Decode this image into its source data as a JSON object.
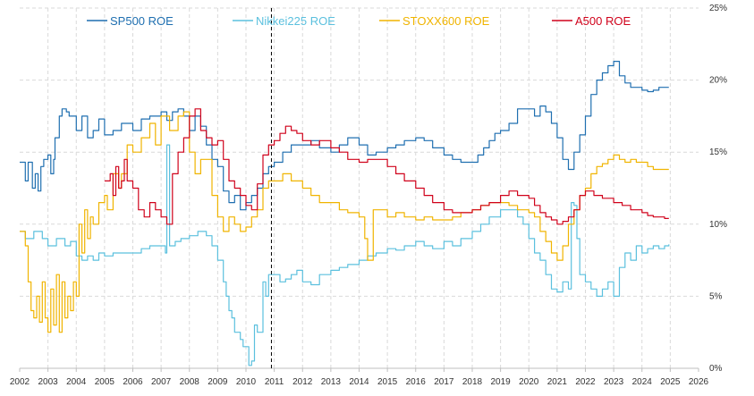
{
  "chart_data": {
    "type": "line",
    "title": "",
    "xlabel": "",
    "ylabel": "",
    "xlim": [
      2002,
      2026
    ],
    "ylim": [
      0,
      25
    ],
    "x_ticks": [
      "2002",
      "2003",
      "2004",
      "2005",
      "2006",
      "2007",
      "2008",
      "2009",
      "2010",
      "2011",
      "2012",
      "2013",
      "2014",
      "2015",
      "2016",
      "2017",
      "2018",
      "2019",
      "2020",
      "2021",
      "2022",
      "2023",
      "2024",
      "2025",
      "2026"
    ],
    "y_ticks": [
      {
        "value": 0,
        "label": "0%"
      },
      {
        "value": 5,
        "label": "5%"
      },
      {
        "value": 10,
        "label": "10%"
      },
      {
        "value": 15,
        "label": "15%"
      },
      {
        "value": 20,
        "label": "20%"
      },
      {
        "value": 25,
        "label": "25%"
      }
    ],
    "grid": true,
    "legend_position": "top",
    "annotation": {
      "type": "vertical-dashed-line",
      "x": 2010.9
    },
    "series": [
      {
        "name": "SP500 ROE",
        "color": "#1f6fb0",
        "x": [
          2002.0,
          2002.2,
          2002.3,
          2002.45,
          2002.55,
          2002.65,
          2002.75,
          2002.85,
          2003.0,
          2003.1,
          2003.2,
          2003.25,
          2003.4,
          2003.5,
          2003.65,
          2003.75,
          2004.0,
          2004.2,
          2004.4,
          2004.6,
          2004.8,
          2005.0,
          2005.3,
          2005.6,
          2006.0,
          2006.3,
          2006.6,
          2007.0,
          2007.2,
          2007.4,
          2007.6,
          2007.8,
          2008.0,
          2008.2,
          2008.4,
          2008.6,
          2008.8,
          2009.0,
          2009.2,
          2009.4,
          2009.6,
          2009.8,
          2010.0,
          2010.2,
          2010.4,
          2010.6,
          2010.8,
          2011.0,
          2011.3,
          2011.6,
          2012.0,
          2012.3,
          2012.6,
          2013.0,
          2013.3,
          2013.6,
          2014.0,
          2014.3,
          2014.6,
          2015.0,
          2015.3,
          2015.6,
          2016.0,
          2016.3,
          2016.6,
          2017.0,
          2017.3,
          2017.6,
          2018.0,
          2018.2,
          2018.4,
          2018.6,
          2018.8,
          2019.0,
          2019.3,
          2019.6,
          2020.0,
          2020.2,
          2020.4,
          2020.6,
          2020.8,
          2021.0,
          2021.2,
          2021.4,
          2021.6,
          2021.8,
          2022.0,
          2022.2,
          2022.4,
          2022.6,
          2022.8,
          2023.0,
          2023.2,
          2023.4,
          2023.6,
          2023.8,
          2024.0,
          2024.2,
          2024.4,
          2024.6,
          2024.8,
          2024.95
        ],
        "y": [
          14.3,
          13.0,
          14.3,
          12.5,
          13.5,
          12.3,
          14.0,
          14.5,
          14.8,
          13.5,
          14.5,
          16.0,
          17.5,
          18.0,
          17.8,
          17.5,
          16.5,
          17.5,
          16.0,
          16.5,
          17.3,
          16.2,
          16.5,
          17.0,
          16.5,
          17.3,
          17.5,
          17.8,
          17.2,
          17.8,
          18.0,
          17.5,
          16.5,
          17.5,
          16.8,
          15.5,
          14.5,
          14.0,
          12.3,
          11.5,
          12.0,
          11.0,
          11.5,
          12.0,
          12.5,
          13.5,
          14.0,
          14.3,
          15.0,
          15.5,
          15.5,
          15.8,
          15.3,
          15.0,
          15.5,
          16.0,
          15.5,
          14.8,
          15.0,
          15.3,
          15.5,
          15.8,
          16.0,
          15.8,
          15.3,
          14.8,
          14.5,
          14.3,
          14.3,
          14.8,
          15.3,
          15.8,
          16.3,
          16.5,
          17.0,
          18.0,
          18.0,
          17.5,
          18.2,
          17.8,
          17.0,
          16.0,
          14.5,
          13.8,
          15.0,
          16.2,
          17.5,
          19.0,
          20.0,
          20.5,
          21.0,
          21.3,
          20.3,
          19.8,
          19.5,
          19.5,
          19.3,
          19.2,
          19.3,
          19.5,
          19.5,
          19.5
        ]
      },
      {
        "name": "Nikkei225 ROE",
        "color": "#5bc0de",
        "x": [
          2002.0,
          2002.2,
          2002.5,
          2002.8,
          2003.0,
          2003.3,
          2003.6,
          2003.8,
          2004.0,
          2004.2,
          2004.4,
          2004.6,
          2004.8,
          2005.0,
          2005.3,
          2005.6,
          2006.0,
          2006.3,
          2006.6,
          2007.0,
          2007.15,
          2007.2,
          2007.3,
          2007.5,
          2007.7,
          2008.0,
          2008.3,
          2008.6,
          2008.8,
          2009.0,
          2009.2,
          2009.3,
          2009.4,
          2009.5,
          2009.6,
          2009.7,
          2009.8,
          2009.9,
          2010.0,
          2010.1,
          2010.2,
          2010.3,
          2010.4,
          2010.6,
          2010.7,
          2010.8,
          2011.0,
          2011.1,
          2011.2,
          2011.4,
          2011.6,
          2011.8,
          2012.0,
          2012.3,
          2012.6,
          2013.0,
          2013.3,
          2013.6,
          2014.0,
          2014.3,
          2014.6,
          2015.0,
          2015.3,
          2015.6,
          2016.0,
          2016.3,
          2016.6,
          2017.0,
          2017.3,
          2017.6,
          2018.0,
          2018.3,
          2018.6,
          2019.0,
          2019.3,
          2019.6,
          2019.8,
          2020.0,
          2020.2,
          2020.4,
          2020.6,
          2020.8,
          2021.0,
          2021.2,
          2021.4,
          2021.5,
          2021.6,
          2021.7,
          2021.8,
          2022.0,
          2022.2,
          2022.4,
          2022.6,
          2022.8,
          2023.0,
          2023.2,
          2023.4,
          2023.6,
          2023.8,
          2024.0,
          2024.2,
          2024.4,
          2024.6,
          2024.8,
          2024.95
        ],
        "y": [
          9.5,
          9.0,
          9.5,
          9.0,
          8.5,
          9.0,
          8.5,
          8.8,
          7.8,
          7.5,
          7.8,
          7.5,
          8.0,
          7.8,
          8.0,
          8.0,
          8.0,
          8.3,
          8.5,
          8.5,
          8.0,
          15.5,
          8.5,
          8.8,
          9.0,
          9.2,
          9.5,
          9.2,
          8.5,
          7.5,
          6.0,
          5.0,
          4.0,
          3.5,
          2.5,
          2.5,
          2.0,
          1.5,
          1.5,
          0.2,
          0.5,
          3.0,
          2.5,
          6.0,
          5.0,
          6.5,
          6.5,
          6.5,
          6.0,
          6.2,
          6.5,
          6.8,
          6.0,
          5.8,
          6.5,
          6.8,
          7.0,
          7.2,
          7.5,
          7.8,
          8.0,
          8.3,
          8.2,
          8.5,
          8.8,
          8.5,
          8.3,
          8.8,
          8.5,
          9.0,
          9.5,
          10.0,
          10.5,
          11.0,
          11.0,
          10.5,
          10.0,
          9.0,
          8.0,
          7.5,
          6.5,
          5.5,
          5.3,
          6.0,
          5.5,
          11.5,
          11.3,
          9.0,
          6.5,
          6.0,
          5.5,
          5.0,
          5.5,
          6.0,
          5.0,
          7.0,
          8.0,
          7.5,
          8.5,
          8.0,
          8.3,
          8.5,
          8.3,
          8.5,
          8.6
        ]
      },
      {
        "name": "STOXX600 ROE",
        "color": "#f0b400",
        "x": [
          2002.0,
          2002.2,
          2002.3,
          2002.4,
          2002.5,
          2002.6,
          2002.7,
          2002.8,
          2002.9,
          2003.0,
          2003.1,
          2003.2,
          2003.3,
          2003.4,
          2003.5,
          2003.6,
          2003.7,
          2003.8,
          2003.9,
          2004.0,
          2004.1,
          2004.2,
          2004.3,
          2004.4,
          2004.5,
          2004.6,
          2004.8,
          2005.0,
          2005.1,
          2005.3,
          2005.5,
          2005.6,
          2005.8,
          2006.0,
          2006.3,
          2006.6,
          2006.8,
          2007.0,
          2007.3,
          2007.6,
          2007.8,
          2008.0,
          2008.2,
          2008.4,
          2008.6,
          2008.8,
          2009.0,
          2009.2,
          2009.4,
          2009.6,
          2009.8,
          2010.0,
          2010.2,
          2010.4,
          2010.6,
          2010.8,
          2011.0,
          2011.3,
          2011.6,
          2012.0,
          2012.3,
          2012.6,
          2013.0,
          2013.3,
          2013.6,
          2014.0,
          2014.2,
          2014.3,
          2014.5,
          2015.0,
          2015.3,
          2015.6,
          2016.0,
          2016.3,
          2016.6,
          2017.0,
          2017.3,
          2017.6,
          2018.0,
          2018.3,
          2018.6,
          2019.0,
          2019.3,
          2019.6,
          2020.0,
          2020.2,
          2020.4,
          2020.6,
          2020.8,
          2021.0,
          2021.2,
          2021.4,
          2021.6,
          2021.8,
          2022.0,
          2022.2,
          2022.4,
          2022.6,
          2022.8,
          2023.0,
          2023.2,
          2023.4,
          2023.6,
          2023.8,
          2024.0,
          2024.2,
          2024.4,
          2024.6,
          2024.8,
          2024.95
        ],
        "y": [
          9.5,
          8.5,
          6.0,
          4.0,
          3.5,
          5.0,
          3.2,
          6.0,
          3.5,
          2.5,
          5.5,
          3.0,
          6.5,
          2.5,
          6.0,
          3.5,
          5.0,
          4.0,
          6.0,
          5.0,
          10.0,
          8.0,
          11.0,
          9.0,
          10.5,
          10.0,
          11.5,
          12.0,
          11.0,
          13.5,
          12.5,
          13.5,
          15.5,
          15.0,
          16.0,
          17.0,
          15.5,
          17.5,
          16.5,
          17.5,
          17.8,
          15.0,
          13.5,
          14.5,
          14.5,
          12.0,
          10.5,
          9.5,
          10.5,
          10.0,
          9.5,
          9.8,
          10.5,
          11.0,
          12.5,
          13.0,
          13.0,
          13.5,
          13.0,
          12.5,
          12.0,
          11.5,
          11.5,
          11.0,
          10.8,
          10.5,
          9.0,
          7.5,
          11.0,
          10.5,
          10.8,
          10.5,
          10.3,
          10.5,
          10.3,
          10.3,
          10.5,
          10.8,
          11.0,
          11.3,
          11.5,
          11.5,
          11.3,
          11.0,
          10.8,
          10.5,
          9.5,
          8.8,
          8.0,
          7.5,
          8.5,
          10.0,
          11.0,
          12.0,
          12.5,
          13.5,
          14.0,
          14.2,
          14.5,
          14.8,
          14.5,
          14.3,
          14.5,
          14.3,
          14.3,
          14.0,
          13.8,
          13.8,
          13.8,
          13.8
        ]
      },
      {
        "name": "A500 ROE",
        "color": "#d0021b",
        "x": [
          2005.0,
          2005.2,
          2005.3,
          2005.4,
          2005.5,
          2005.6,
          2005.7,
          2005.8,
          2006.0,
          2006.2,
          2006.4,
          2006.6,
          2006.8,
          2007.0,
          2007.2,
          2007.4,
          2007.6,
          2007.8,
          2008.0,
          2008.2,
          2008.4,
          2008.6,
          2008.8,
          2009.0,
          2009.2,
          2009.4,
          2009.6,
          2009.8,
          2010.0,
          2010.2,
          2010.4,
          2010.6,
          2010.8,
          2011.0,
          2011.2,
          2011.4,
          2011.6,
          2011.8,
          2012.0,
          2012.3,
          2012.6,
          2013.0,
          2013.3,
          2013.6,
          2014.0,
          2014.3,
          2014.6,
          2015.0,
          2015.3,
          2015.6,
          2016.0,
          2016.3,
          2016.6,
          2017.0,
          2017.3,
          2017.6,
          2018.0,
          2018.3,
          2018.6,
          2019.0,
          2019.3,
          2019.6,
          2020.0,
          2020.2,
          2020.4,
          2020.6,
          2020.8,
          2021.0,
          2021.2,
          2021.4,
          2021.6,
          2021.8,
          2022.0,
          2022.3,
          2022.6,
          2023.0,
          2023.3,
          2023.6,
          2024.0,
          2024.2,
          2024.4,
          2024.6,
          2024.8,
          2024.95
        ],
        "y": [
          13.0,
          13.5,
          12.0,
          14.0,
          12.5,
          13.0,
          14.5,
          13.0,
          12.5,
          11.0,
          10.5,
          11.5,
          11.0,
          10.5,
          10.0,
          13.5,
          15.0,
          16.0,
          17.5,
          18.0,
          16.5,
          16.0,
          15.5,
          15.8,
          14.5,
          13.0,
          12.5,
          12.0,
          11.3,
          11.0,
          12.8,
          14.8,
          15.5,
          15.8,
          16.3,
          16.8,
          16.5,
          16.3,
          15.8,
          15.5,
          15.8,
          15.3,
          15.0,
          14.5,
          14.3,
          14.5,
          14.5,
          14.0,
          13.5,
          13.0,
          12.5,
          12.0,
          11.5,
          11.0,
          10.8,
          10.8,
          11.0,
          11.3,
          11.5,
          12.0,
          12.3,
          12.0,
          11.8,
          11.3,
          10.8,
          10.5,
          10.3,
          10.0,
          10.2,
          10.5,
          11.0,
          12.0,
          12.3,
          12.0,
          11.8,
          11.5,
          11.3,
          11.0,
          10.8,
          10.6,
          10.5,
          10.5,
          10.4,
          10.4
        ]
      }
    ]
  }
}
